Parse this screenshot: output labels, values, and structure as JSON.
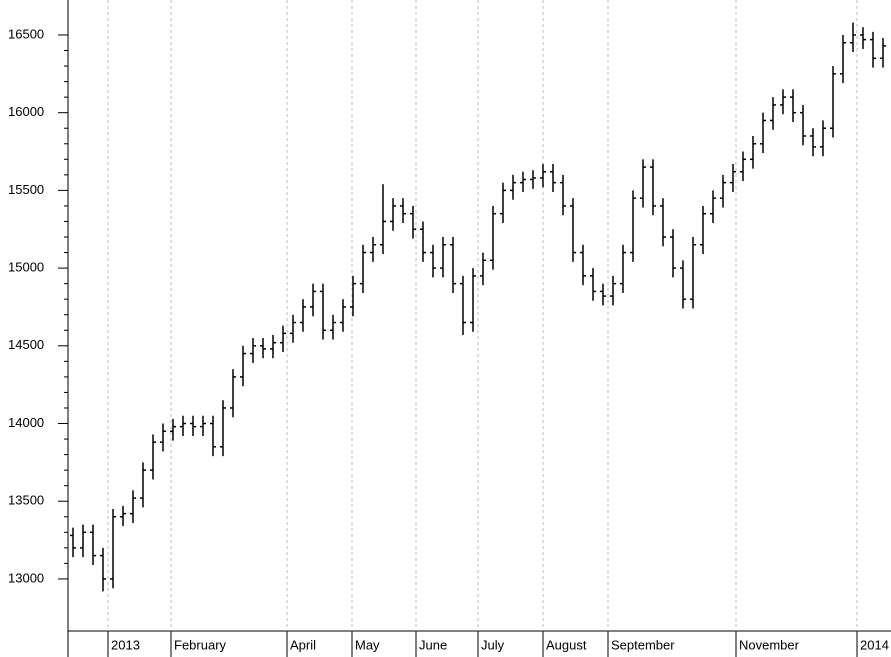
{
  "chart_data": {
    "type": "ohlc",
    "color": "#000000",
    "ylim": [
      12665,
      16725
    ],
    "yticks": [
      13000,
      13500,
      14000,
      14500,
      15000,
      15500,
      16000,
      16500
    ],
    "xlim": [
      0,
      82.3
    ],
    "xticks": [
      {
        "value": 4.0,
        "label": "2013"
      },
      {
        "value": 10.3,
        "label": "February"
      },
      {
        "value": 21.9,
        "label": "April"
      },
      {
        "value": 28.4,
        "label": "May"
      },
      {
        "value": 34.8,
        "label": "June"
      },
      {
        "value": 41.0,
        "label": "July"
      },
      {
        "value": 47.5,
        "label": "August"
      },
      {
        "value": 54.0,
        "label": "September"
      },
      {
        "value": 66.8,
        "label": "November"
      },
      {
        "value": 78.9,
        "label": "2014"
      }
    ],
    "xgrid": true,
    "open": [
      13280,
      13200,
      13300,
      13150,
      13000,
      13400,
      13420,
      13520,
      13700,
      13880,
      13950,
      13980,
      14000,
      13980,
      14000,
      13850,
      14100,
      14300,
      14450,
      14500,
      14480,
      14520,
      14580,
      14650,
      14750,
      14850,
      14600,
      14650,
      14750,
      14900,
      15100,
      15150,
      15300,
      15400,
      15350,
      15250,
      15100,
      15000,
      15150,
      14900,
      14650,
      14950,
      15050,
      15350,
      15500,
      15550,
      15570,
      15580,
      15620,
      15550,
      15400,
      15100,
      14950,
      14850,
      14820,
      14900,
      15100,
      15450,
      15650,
      15400,
      15200,
      15000,
      14800,
      15150,
      15350,
      15450,
      15550,
      15620,
      15700,
      15800,
      15950,
      16050,
      16100,
      16000,
      15850,
      15780,
      15900,
      16250,
      16450,
      16500,
      16470,
      16350
    ],
    "high": [
      13330,
      13350,
      13350,
      13200,
      13450,
      13470,
      13570,
      13750,
      13930,
      14000,
      14030,
      14050,
      14050,
      14050,
      14050,
      14150,
      14350,
      14500,
      14550,
      14550,
      14570,
      14630,
      14700,
      14800,
      14900,
      14900,
      14700,
      14800,
      14950,
      15150,
      15200,
      15540,
      15450,
      15450,
      15400,
      15300,
      15150,
      15200,
      15200,
      14950,
      15000,
      15100,
      15400,
      15550,
      15600,
      15620,
      15630,
      15670,
      15670,
      15600,
      15450,
      15150,
      15000,
      14900,
      14950,
      15150,
      15500,
      15700,
      15700,
      15450,
      15250,
      15050,
      15200,
      15400,
      15500,
      15600,
      15670,
      15750,
      15850,
      16000,
      16100,
      16150,
      16150,
      16050,
      15900,
      15950,
      16300,
      16500,
      16580,
      16550,
      16520,
      16480
    ],
    "low": [
      13140,
      13140,
      13090,
      12920,
      12940,
      13340,
      13360,
      13460,
      13640,
      13820,
      13890,
      13920,
      13920,
      13920,
      13790,
      13790,
      14040,
      14240,
      14390,
      14420,
      14420,
      14460,
      14520,
      14590,
      14690,
      14540,
      14540,
      14590,
      14690,
      14840,
      15040,
      15090,
      15240,
      15290,
      15190,
      15040,
      14940,
      14940,
      14840,
      14570,
      14590,
      14890,
      14990,
      15290,
      15440,
      15490,
      15510,
      15520,
      15490,
      15340,
      15040,
      14890,
      14790,
      14760,
      14760,
      14840,
      15040,
      15390,
      15340,
      15140,
      14940,
      14740,
      14740,
      15090,
      15290,
      15390,
      15490,
      15560,
      15640,
      15740,
      15890,
      15990,
      15940,
      15790,
      15720,
      15720,
      15840,
      16190,
      16390,
      16410,
      16290,
      16290
    ],
    "close": [
      13200,
      13300,
      13150,
      13000,
      13400,
      13420,
      13520,
      13700,
      13880,
      13950,
      13980,
      14000,
      13980,
      14000,
      13850,
      14100,
      14300,
      14450,
      14500,
      14480,
      14520,
      14580,
      14650,
      14750,
      14850,
      14600,
      14650,
      14750,
      14900,
      15100,
      15150,
      15300,
      15400,
      15350,
      15250,
      15100,
      15000,
      15150,
      14900,
      14650,
      14950,
      15050,
      15350,
      15500,
      15550,
      15570,
      15580,
      15620,
      15550,
      15400,
      15100,
      14950,
      14850,
      14820,
      14900,
      15100,
      15450,
      15650,
      15400,
      15200,
      15000,
      14800,
      15150,
      15350,
      15450,
      15550,
      15620,
      15700,
      15800,
      15950,
      16050,
      16100,
      16000,
      15850,
      15780,
      15900,
      16250,
      16450,
      16500,
      16470,
      16350,
      16430
    ]
  }
}
